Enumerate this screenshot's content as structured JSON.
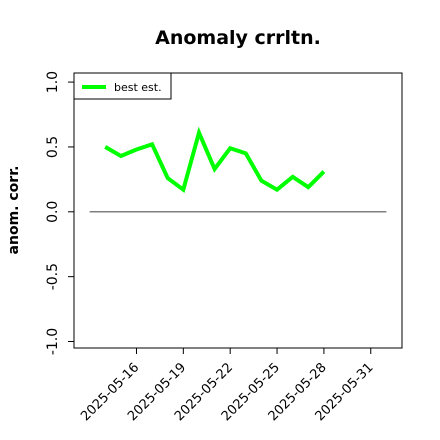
{
  "chart_data": {
    "type": "line",
    "title": "Anomaly crrltn.",
    "xlabel": "",
    "ylabel": "anom. corr.",
    "x": [
      "2025-05-14",
      "2025-05-15",
      "2025-05-16",
      "2025-05-17",
      "2025-05-18",
      "2025-05-19",
      "2025-05-20",
      "2025-05-21",
      "2025-05-22",
      "2025-05-23",
      "2025-05-24",
      "2025-05-25",
      "2025-05-26",
      "2025-05-27",
      "2025-05-28",
      "2025-05-29"
    ],
    "series": [
      {
        "name": "best est.",
        "color": "#00ff00",
        "values": [
          0.5,
          0.43,
          0.48,
          0.52,
          0.26,
          0.17,
          0.61,
          0.33,
          0.49,
          0.45,
          0.24,
          0.17,
          0.27,
          0.19,
          0.31,
          null
        ]
      }
    ],
    "reference_line": {
      "y": 0.0,
      "x_from": "2025-05-13",
      "x_to": "2025-06-01",
      "color": "#555555"
    },
    "xlim": [
      "2025-05-12",
      "2025-06-02"
    ],
    "ylim": [
      -1.05,
      1.07
    ],
    "yticks": [
      -1.0,
      -0.5,
      0.0,
      0.5,
      1.0
    ],
    "ytick_labels": [
      "-1.0",
      "-0.5",
      "0.0",
      "0.5",
      "1.0"
    ],
    "xticks": [
      "2025-05-16",
      "2025-05-19",
      "2025-05-22",
      "2025-05-25",
      "2025-05-28",
      "2025-05-31"
    ],
    "xtick_labels": [
      "2025-05-16",
      "2025-05-19",
      "2025-05-22",
      "2025-05-25",
      "2025-05-28",
      "2025-05-31"
    ],
    "legend": "top-left",
    "grid": false
  }
}
